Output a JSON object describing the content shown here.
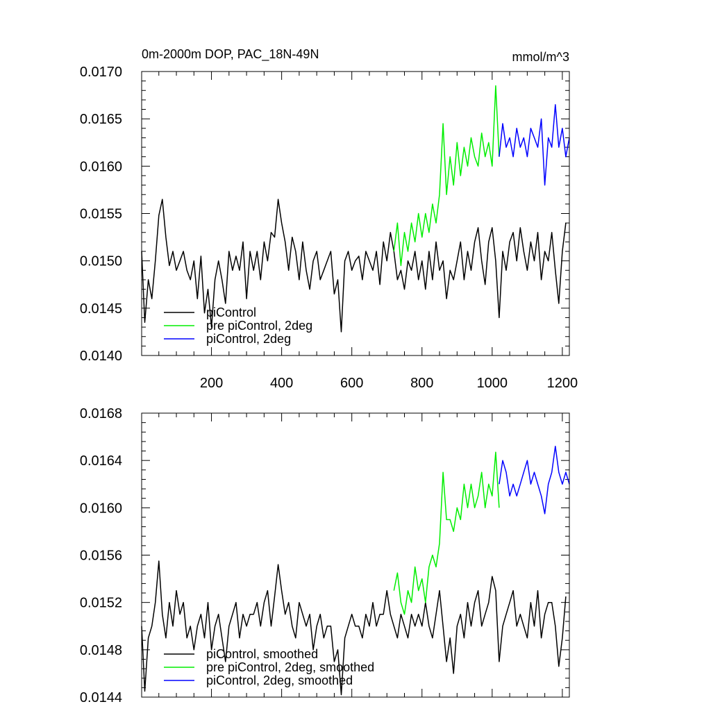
{
  "chart_data": [
    {
      "type": "line",
      "title": "0m-2000m DOP, PAC_18N-49N",
      "units": "mmol/m^3",
      "xlim": [
        1,
        1220
      ],
      "ylim": [
        0.014,
        0.017
      ],
      "x_ticks": [
        200,
        400,
        600,
        800,
        1000,
        1200
      ],
      "x_tick_labels": [
        "200",
        "400",
        "600",
        "800",
        "1000",
        "1200"
      ],
      "y_ticks": [
        0.014,
        0.0145,
        0.015,
        0.0155,
        0.016,
        0.0165,
        0.017
      ],
      "y_tick_labels": [
        "0.0140",
        "0.0145",
        "0.0150",
        "0.0155",
        "0.0160",
        "0.0165",
        "0.0170"
      ],
      "grid": false,
      "legend_position": "bottom-left",
      "series": [
        {
          "name": "piControl",
          "color": "#000000",
          "x": [
            1,
            10,
            20,
            30,
            40,
            50,
            60,
            70,
            80,
            90,
            100,
            110,
            120,
            130,
            140,
            150,
            160,
            170,
            180,
            190,
            200,
            210,
            220,
            230,
            240,
            250,
            260,
            270,
            280,
            290,
            300,
            310,
            320,
            330,
            340,
            350,
            360,
            370,
            380,
            390,
            400,
            410,
            420,
            430,
            440,
            450,
            460,
            470,
            480,
            490,
            500,
            510,
            520,
            530,
            540,
            550,
            560,
            570,
            580,
            590,
            600,
            610,
            620,
            630,
            640,
            650,
            660,
            670,
            680,
            690,
            700,
            710,
            720,
            730,
            740,
            750,
            760,
            770,
            780,
            790,
            800,
            810,
            820,
            830,
            840,
            850,
            860,
            870,
            880,
            890,
            900,
            910,
            920,
            930,
            940,
            950,
            960,
            970,
            980,
            990,
            1000,
            1010,
            1020,
            1030,
            1040,
            1050,
            1060,
            1070,
            1080,
            1090,
            1100,
            1110,
            1120,
            1130,
            1140,
            1150,
            1160,
            1170,
            1180,
            1190,
            1200,
            1210
          ],
          "values": [
            0.0151,
            0.01435,
            0.0148,
            0.0146,
            0.015,
            0.01548,
            0.01565,
            0.01525,
            0.01495,
            0.0151,
            0.0149,
            0.015,
            0.0151,
            0.0149,
            0.0148,
            0.015,
            0.0146,
            0.01505,
            0.01445,
            0.0147,
            0.0143,
            0.0148,
            0.015,
            0.0148,
            0.01455,
            0.0151,
            0.0149,
            0.01505,
            0.0149,
            0.0152,
            0.0146,
            0.0151,
            0.0149,
            0.0151,
            0.0148,
            0.0152,
            0.015,
            0.0153,
            0.01525,
            0.01565,
            0.0154,
            0.0152,
            0.0149,
            0.01525,
            0.0151,
            0.0148,
            0.0152,
            0.0149,
            0.0147,
            0.015,
            0.0151,
            0.0148,
            0.0149,
            0.015,
            0.0151,
            0.01465,
            0.0148,
            0.01425,
            0.015,
            0.0151,
            0.0149,
            0.015,
            0.01505,
            0.0148,
            0.0151,
            0.015,
            0.0149,
            0.0151,
            0.01475,
            0.0152,
            0.015,
            0.0153,
            0.0151,
            0.0148,
            0.0149,
            0.0147,
            0.015,
            0.0149,
            0.0151,
            0.0148,
            0.015,
            0.0147,
            0.0151,
            0.0148,
            0.0152,
            0.0149,
            0.015,
            0.0146,
            0.0149,
            0.0148,
            0.015,
            0.0152,
            0.0148,
            0.0151,
            0.0149,
            0.0152,
            0.01535,
            0.015,
            0.01475,
            0.0152,
            0.01535,
            0.015,
            0.0144,
            0.0151,
            0.0149,
            0.0152,
            0.0153,
            0.015,
            0.01535,
            0.0151,
            0.0149,
            0.0152,
            0.015,
            0.0153,
            0.0148,
            0.0151,
            0.015,
            0.0153,
            0.0149,
            0.01455,
            0.0151,
            0.0154
          ]
        },
        {
          "name": "pre piControl, 2deg",
          "color": "#00ee00",
          "x": [
            720,
            730,
            740,
            750,
            760,
            770,
            780,
            790,
            800,
            810,
            820,
            830,
            840,
            850,
            860,
            870,
            880,
            890,
            900,
            910,
            920,
            930,
            940,
            950,
            960,
            970,
            980,
            990,
            1000,
            1010,
            1020
          ],
          "values": [
            0.0151,
            0.0154,
            0.01495,
            0.0153,
            0.0151,
            0.0154,
            0.0152,
            0.0155,
            0.01525,
            0.0155,
            0.0153,
            0.0156,
            0.0154,
            0.0157,
            0.01645,
            0.0157,
            0.0161,
            0.0158,
            0.01625,
            0.0159,
            0.0162,
            0.016,
            0.0163,
            0.0161,
            0.016,
            0.01635,
            0.0161,
            0.01625,
            0.016,
            0.01685,
            0.0161
          ]
        },
        {
          "name": "piControl, 2deg",
          "color": "#0000ff",
          "x": [
            1020,
            1030,
            1040,
            1050,
            1060,
            1070,
            1080,
            1090,
            1100,
            1110,
            1120,
            1130,
            1140,
            1150,
            1160,
            1170,
            1180,
            1190,
            1200,
            1210,
            1220
          ],
          "values": [
            0.0161,
            0.01645,
            0.0162,
            0.0163,
            0.0161,
            0.0164,
            0.0162,
            0.0163,
            0.0161,
            0.0164,
            0.0163,
            0.0162,
            0.0165,
            0.0158,
            0.0163,
            0.0162,
            0.01665,
            0.0162,
            0.0164,
            0.0161,
            0.0163
          ]
        }
      ]
    },
    {
      "type": "line",
      "xlim": [
        1,
        1220
      ],
      "ylim": [
        0.0144,
        0.0168
      ],
      "x_ticks": [
        200,
        400,
        600,
        800,
        1000,
        1200
      ],
      "y_ticks": [
        0.0144,
        0.0148,
        0.0152,
        0.0156,
        0.016,
        0.0164,
        0.0168
      ],
      "y_tick_labels": [
        "0.0144",
        "0.0148",
        "0.0152",
        "0.0156",
        "0.0160",
        "0.0164",
        "0.0168"
      ],
      "grid": false,
      "legend_position": "bottom-left",
      "series": [
        {
          "name": "piControl, smoothed",
          "color": "#000000",
          "x": [
            1,
            10,
            20,
            30,
            40,
            50,
            60,
            70,
            80,
            90,
            100,
            110,
            120,
            130,
            140,
            150,
            160,
            170,
            180,
            190,
            200,
            210,
            220,
            230,
            240,
            250,
            260,
            270,
            280,
            290,
            300,
            310,
            320,
            330,
            340,
            350,
            360,
            370,
            380,
            390,
            400,
            410,
            420,
            430,
            440,
            450,
            460,
            470,
            480,
            490,
            500,
            510,
            520,
            530,
            540,
            550,
            560,
            570,
            580,
            590,
            600,
            610,
            620,
            630,
            640,
            650,
            660,
            670,
            680,
            690,
            700,
            710,
            720,
            730,
            740,
            750,
            760,
            770,
            780,
            790,
            800,
            810,
            820,
            830,
            840,
            850,
            860,
            870,
            880,
            890,
            900,
            910,
            920,
            930,
            940,
            950,
            960,
            970,
            980,
            990,
            1000,
            1010,
            1020,
            1030,
            1040,
            1050,
            1060,
            1070,
            1080,
            1090,
            1100,
            1110,
            1120,
            1130,
            1140,
            1150,
            1160,
            1170,
            1180,
            1190,
            1200,
            1210
          ],
          "values": [
            0.015,
            0.01445,
            0.0149,
            0.015,
            0.0152,
            0.01555,
            0.0151,
            0.0149,
            0.0152,
            0.015,
            0.0153,
            0.0151,
            0.0152,
            0.0149,
            0.015,
            0.0148,
            0.015,
            0.0151,
            0.0149,
            0.0152,
            0.0148,
            0.015,
            0.0151,
            0.0149,
            0.0147,
            0.015,
            0.0151,
            0.0152,
            0.0149,
            0.0151,
            0.015,
            0.0151,
            0.0151,
            0.0152,
            0.015,
            0.0152,
            0.0153,
            0.015,
            0.01525,
            0.01552,
            0.0153,
            0.0151,
            0.0152,
            0.015,
            0.0149,
            0.0152,
            0.0151,
            0.015,
            0.0151,
            0.0148,
            0.015,
            0.0151,
            0.0149,
            0.015,
            0.015,
            0.0147,
            0.0148,
            0.01442,
            0.0149,
            0.015,
            0.0151,
            0.015,
            0.015,
            0.0149,
            0.0151,
            0.015,
            0.0152,
            0.015,
            0.0151,
            0.0151,
            0.0153,
            0.0151,
            0.015,
            0.0149,
            0.0151,
            0.015,
            0.0149,
            0.0151,
            0.015,
            0.0151,
            0.015,
            0.0152,
            0.015,
            0.0149,
            0.0151,
            0.0153,
            0.015,
            0.0147,
            0.0149,
            0.0146,
            0.015,
            0.0151,
            0.0149,
            0.0152,
            0.015,
            0.0152,
            0.0153,
            0.015,
            0.0151,
            0.0152,
            0.01542,
            0.0153,
            0.0147,
            0.015,
            0.0151,
            0.0152,
            0.0153,
            0.015,
            0.0151,
            0.015,
            0.0149,
            0.0152,
            0.015,
            0.0153,
            0.0149,
            0.0151,
            0.0152,
            0.0152,
            0.015,
            0.01466,
            0.0149,
            0.01525
          ]
        },
        {
          "name": "pre piControl, 2deg, smoothed",
          "color": "#00ee00",
          "x": [
            720,
            730,
            740,
            750,
            760,
            770,
            780,
            790,
            800,
            810,
            820,
            830,
            840,
            850,
            860,
            870,
            880,
            890,
            900,
            910,
            920,
            930,
            940,
            950,
            960,
            970,
            980,
            990,
            1000,
            1010,
            1020
          ],
          "values": [
            0.0153,
            0.01545,
            0.0152,
            0.0151,
            0.0153,
            0.0152,
            0.0155,
            0.0153,
            0.0154,
            0.0152,
            0.0155,
            0.0156,
            0.0155,
            0.0157,
            0.0163,
            0.0159,
            0.0159,
            0.0158,
            0.016,
            0.0159,
            0.0162,
            0.016,
            0.0162,
            0.016,
            0.0161,
            0.0163,
            0.016,
            0.0162,
            0.0161,
            0.01647,
            0.016
          ]
        },
        {
          "name": "piControl, 2deg, smoothed",
          "color": "#0000ff",
          "x": [
            1020,
            1030,
            1040,
            1050,
            1060,
            1070,
            1080,
            1090,
            1100,
            1110,
            1120,
            1130,
            1140,
            1150,
            1160,
            1170,
            1180,
            1190,
            1200,
            1210,
            1220
          ],
          "values": [
            0.0162,
            0.0164,
            0.0163,
            0.0161,
            0.0162,
            0.0161,
            0.0162,
            0.0163,
            0.0164,
            0.0162,
            0.0163,
            0.0162,
            0.0161,
            0.01595,
            0.0162,
            0.0163,
            0.01652,
            0.0163,
            0.0162,
            0.0163,
            0.0162
          ]
        }
      ]
    }
  ]
}
